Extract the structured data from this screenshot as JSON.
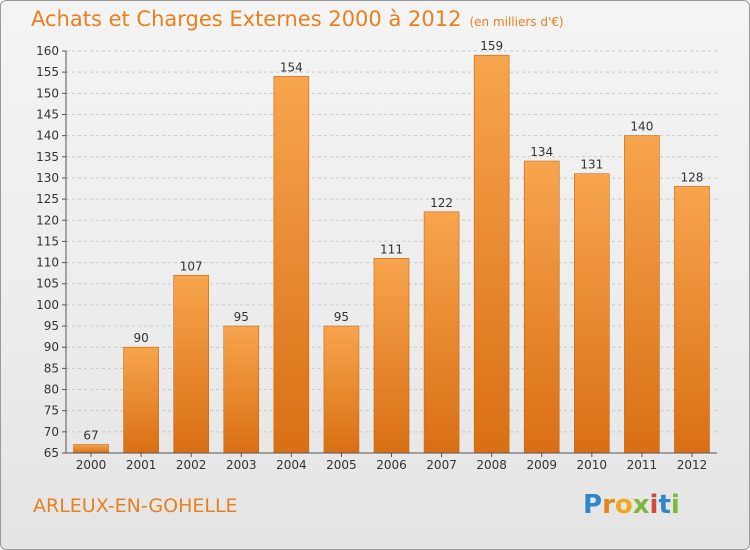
{
  "header": {
    "title": "Achats et Charges Externes 2000 à 2012",
    "subtitle": "(en milliers d'€)"
  },
  "footer": {
    "city": "ARLEUX-EN-GOHELLE",
    "logo_letters": [
      "P",
      "r",
      "o",
      "x",
      "i",
      "t",
      "i"
    ]
  },
  "colors": {
    "bar_light": "#f7a54e",
    "bar_dark": "#d96f14",
    "title": "#e8801e",
    "grid": "#c8c8c8"
  },
  "chart_data": {
    "type": "bar",
    "categories": [
      "2000",
      "2001",
      "2002",
      "2003",
      "2004",
      "2005",
      "2006",
      "2007",
      "2008",
      "2009",
      "2010",
      "2011",
      "2012"
    ],
    "values": [
      67,
      90,
      107,
      95,
      154,
      95,
      111,
      122,
      159,
      134,
      131,
      140,
      128
    ],
    "ylim": [
      65,
      160
    ],
    "yticks": [
      65,
      70,
      75,
      80,
      85,
      90,
      95,
      100,
      105,
      110,
      115,
      120,
      125,
      130,
      135,
      140,
      145,
      150,
      155,
      160
    ],
    "title": "Achats et Charges Externes 2000 à 2012",
    "subtitle": "(en milliers d'€)",
    "xlabel": "",
    "ylabel": "",
    "grid": "horizontal dashed"
  }
}
